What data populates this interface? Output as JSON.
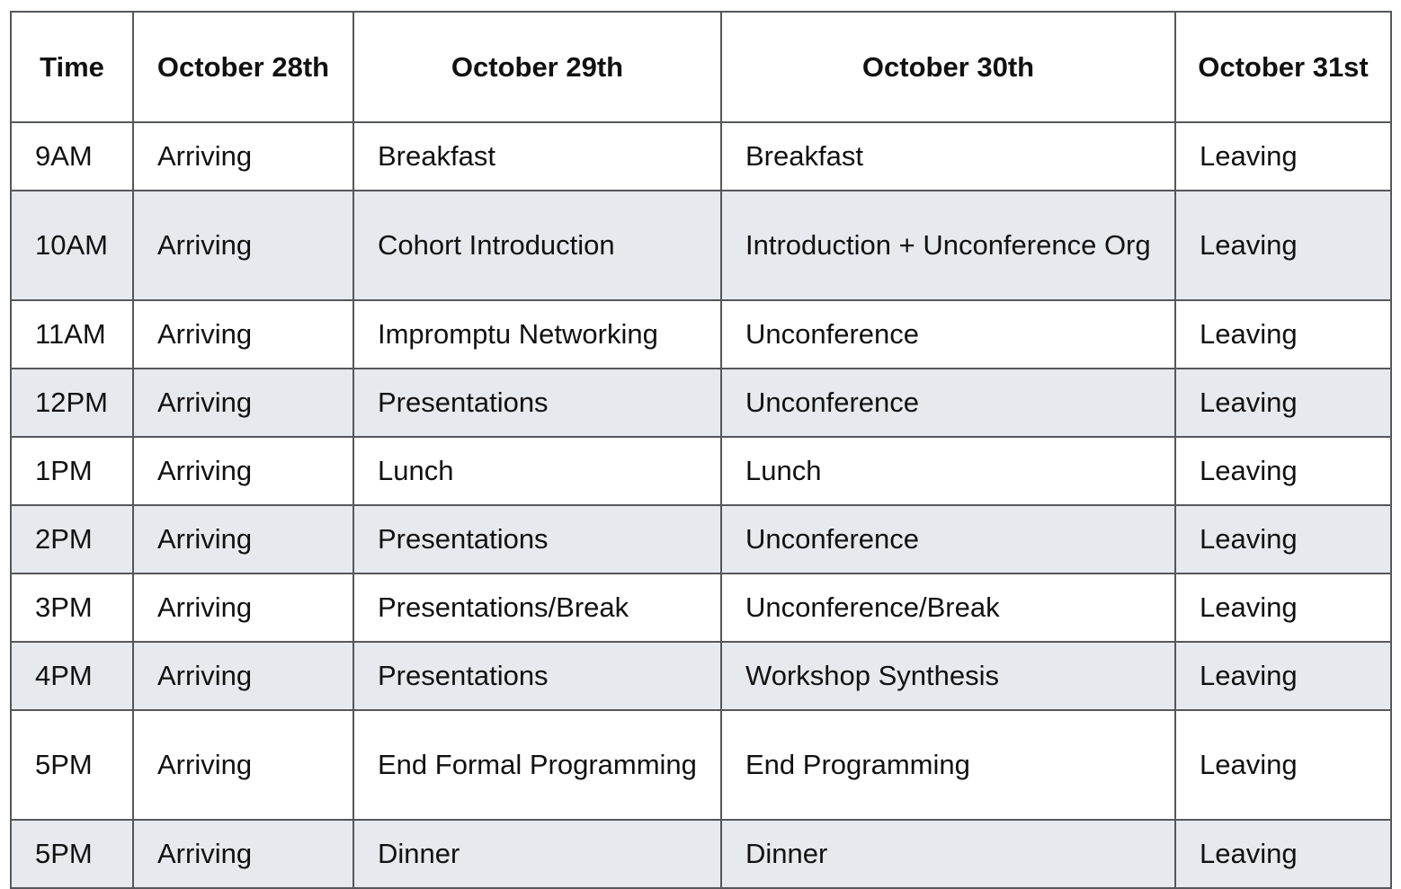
{
  "headers": {
    "time": "Time",
    "oct28": "October 28th",
    "oct29": "October 29th",
    "oct30": "October 30th",
    "oct31": "October 31st"
  },
  "rows": [
    {
      "time": "9AM",
      "oct28": "Arriving",
      "oct29": "Breakfast",
      "oct30": "Breakfast",
      "oct31": "Leaving"
    },
    {
      "time": "10AM",
      "oct28": "Arriving",
      "oct29": "Cohort Introduction",
      "oct30": "Introduction + Unconference Org",
      "oct31": "Leaving"
    },
    {
      "time": "11AM",
      "oct28": "Arriving",
      "oct29": "Impromptu Networking",
      "oct30": "Unconference",
      "oct31": "Leaving"
    },
    {
      "time": "12PM",
      "oct28": "Arriving",
      "oct29": "Presentations",
      "oct30": "Unconference",
      "oct31": "Leaving"
    },
    {
      "time": "1PM",
      "oct28": "Arriving",
      "oct29": "Lunch",
      "oct30": "Lunch",
      "oct31": "Leaving"
    },
    {
      "time": "2PM",
      "oct28": "Arriving",
      "oct29": "Presentations",
      "oct30": "Unconference",
      "oct31": "Leaving"
    },
    {
      "time": "3PM",
      "oct28": "Arriving",
      "oct29": "Presentations/Break",
      "oct30": "Unconference/Break",
      "oct31": "Leaving"
    },
    {
      "time": "4PM",
      "oct28": "Arriving",
      "oct29": "Presentations",
      "oct30": "Workshop Synthesis",
      "oct31": "Leaving"
    },
    {
      "time": "5PM",
      "oct28": "Arriving",
      "oct29": "End Formal Programming",
      "oct30": "End Programming",
      "oct31": "Leaving"
    },
    {
      "time": "5PM",
      "oct28": "Arriving",
      "oct29": "Dinner",
      "oct30": "Dinner",
      "oct31": "Leaving"
    }
  ]
}
